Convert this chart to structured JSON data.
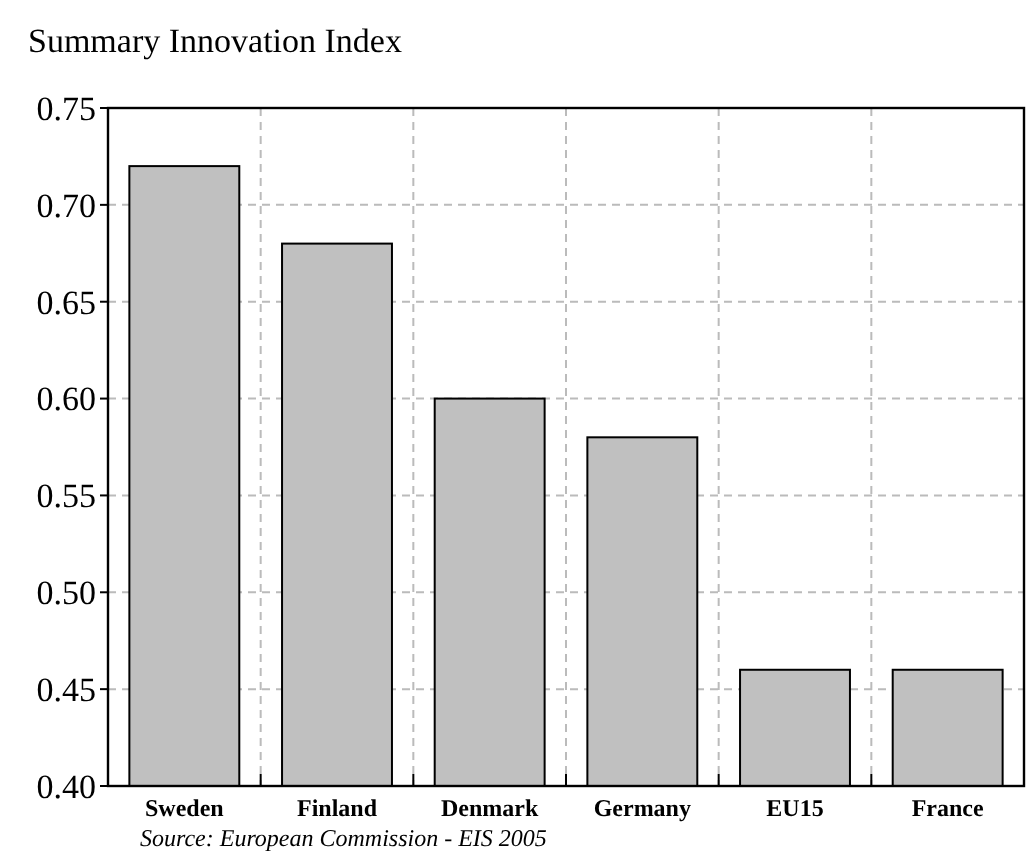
{
  "chart_data": {
    "type": "bar",
    "title": "Summary Innovation Index",
    "categories": [
      "Sweden",
      "Finland",
      "Denmark",
      "Germany",
      "EU15",
      "France"
    ],
    "values": [
      0.72,
      0.68,
      0.6,
      0.58,
      0.46,
      0.46
    ],
    "color": "#c0c0c0",
    "ylim": [
      0.4,
      0.75
    ],
    "yticks": [
      {
        "value": 0.4,
        "label": "0.40"
      },
      {
        "value": 0.45,
        "label": "0.45"
      },
      {
        "value": 0.5,
        "label": "0.50"
      },
      {
        "value": 0.55,
        "label": "0.55"
      },
      {
        "value": 0.6,
        "label": "0.60"
      },
      {
        "value": 0.65,
        "label": "0.65"
      },
      {
        "value": 0.7,
        "label": "0.70"
      },
      {
        "value": 0.75,
        "label": "0.75"
      }
    ],
    "grid": true,
    "annotations": [
      "Source: European Commission - EIS 2005"
    ]
  }
}
